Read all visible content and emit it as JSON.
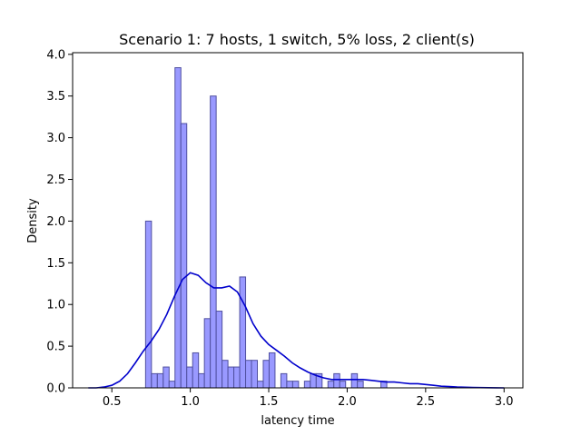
{
  "chart_data": {
    "type": "bar",
    "title": "Scenario 1: 7 hosts, 1 switch, 5% loss, 2 client(s)",
    "xlabel": "latency time",
    "ylabel": "Density",
    "xlim": [
      0.25,
      3.12
    ],
    "ylim": [
      0,
      4.02
    ],
    "xticks": [
      "0.5",
      "1.0",
      "1.5",
      "2.0",
      "2.5",
      "3.0"
    ],
    "yticks": [
      "0.0",
      "0.5",
      "1.0",
      "1.5",
      "2.0",
      "2.5",
      "3.0",
      "3.5",
      "4.0"
    ],
    "grid": false,
    "bar_fill": "#9999ff",
    "bar_edge": "#5050a0",
    "kde_color": "#0000cc",
    "histogram": {
      "bin_start": 0.715,
      "bin_width": 0.0375,
      "values": [
        2.0,
        0.17,
        0.17,
        0.25,
        0.08,
        3.84,
        3.17,
        0.25,
        0.42,
        0.17,
        0.83,
        3.5,
        0.92,
        0.33,
        0.25,
        0.25,
        1.33,
        0.33,
        0.33,
        0.08,
        0.33,
        0.42,
        0,
        0.17,
        0.08,
        0.08,
        0,
        0.08,
        0.17,
        0.17,
        0,
        0.08,
        0.17,
        0.08,
        0,
        0.17,
        0.08,
        0,
        0,
        0,
        0.08
      ]
    },
    "kde": {
      "x": [
        0.35,
        0.4,
        0.45,
        0.5,
        0.55,
        0.6,
        0.65,
        0.7,
        0.75,
        0.8,
        0.85,
        0.9,
        0.95,
        1.0,
        1.05,
        1.1,
        1.15,
        1.2,
        1.25,
        1.3,
        1.35,
        1.4,
        1.45,
        1.5,
        1.55,
        1.6,
        1.65,
        1.7,
        1.75,
        1.8,
        1.85,
        1.9,
        1.95,
        2.0,
        2.05,
        2.1,
        2.15,
        2.2,
        2.25,
        2.3,
        2.35,
        2.4,
        2.45,
        2.5,
        2.55,
        2.6,
        2.65,
        2.7,
        2.75,
        2.8,
        2.85,
        2.9,
        2.95,
        3.0
      ],
      "y": [
        0.0,
        0.0,
        0.01,
        0.03,
        0.08,
        0.17,
        0.3,
        0.44,
        0.56,
        0.7,
        0.88,
        1.1,
        1.3,
        1.38,
        1.35,
        1.26,
        1.2,
        1.2,
        1.22,
        1.15,
        0.98,
        0.77,
        0.62,
        0.52,
        0.45,
        0.38,
        0.3,
        0.24,
        0.19,
        0.15,
        0.12,
        0.1,
        0.1,
        0.1,
        0.1,
        0.1,
        0.09,
        0.08,
        0.07,
        0.07,
        0.06,
        0.05,
        0.05,
        0.04,
        0.03,
        0.02,
        0.015,
        0.01,
        0.008,
        0.005,
        0.003,
        0.002,
        0.001,
        0.0
      ]
    }
  }
}
